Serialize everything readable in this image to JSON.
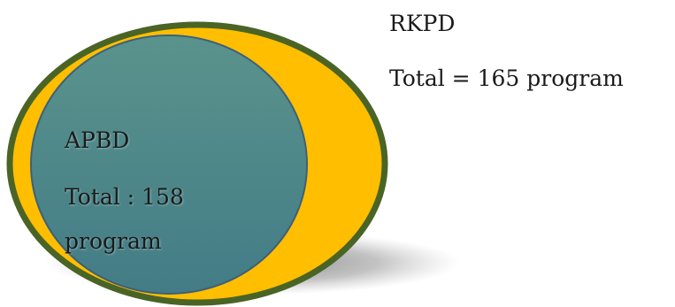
{
  "outer_set": {
    "name": "RKPD",
    "total_text": "Total = 165 program",
    "fill_color": "#FFBE00",
    "border_color": "#4A6426"
  },
  "inner_set": {
    "name": "APBD",
    "total_text": "Total : 158",
    "unit_text": "program",
    "fill_color": "#4E8A85",
    "border_color": "#3F5F78"
  }
}
